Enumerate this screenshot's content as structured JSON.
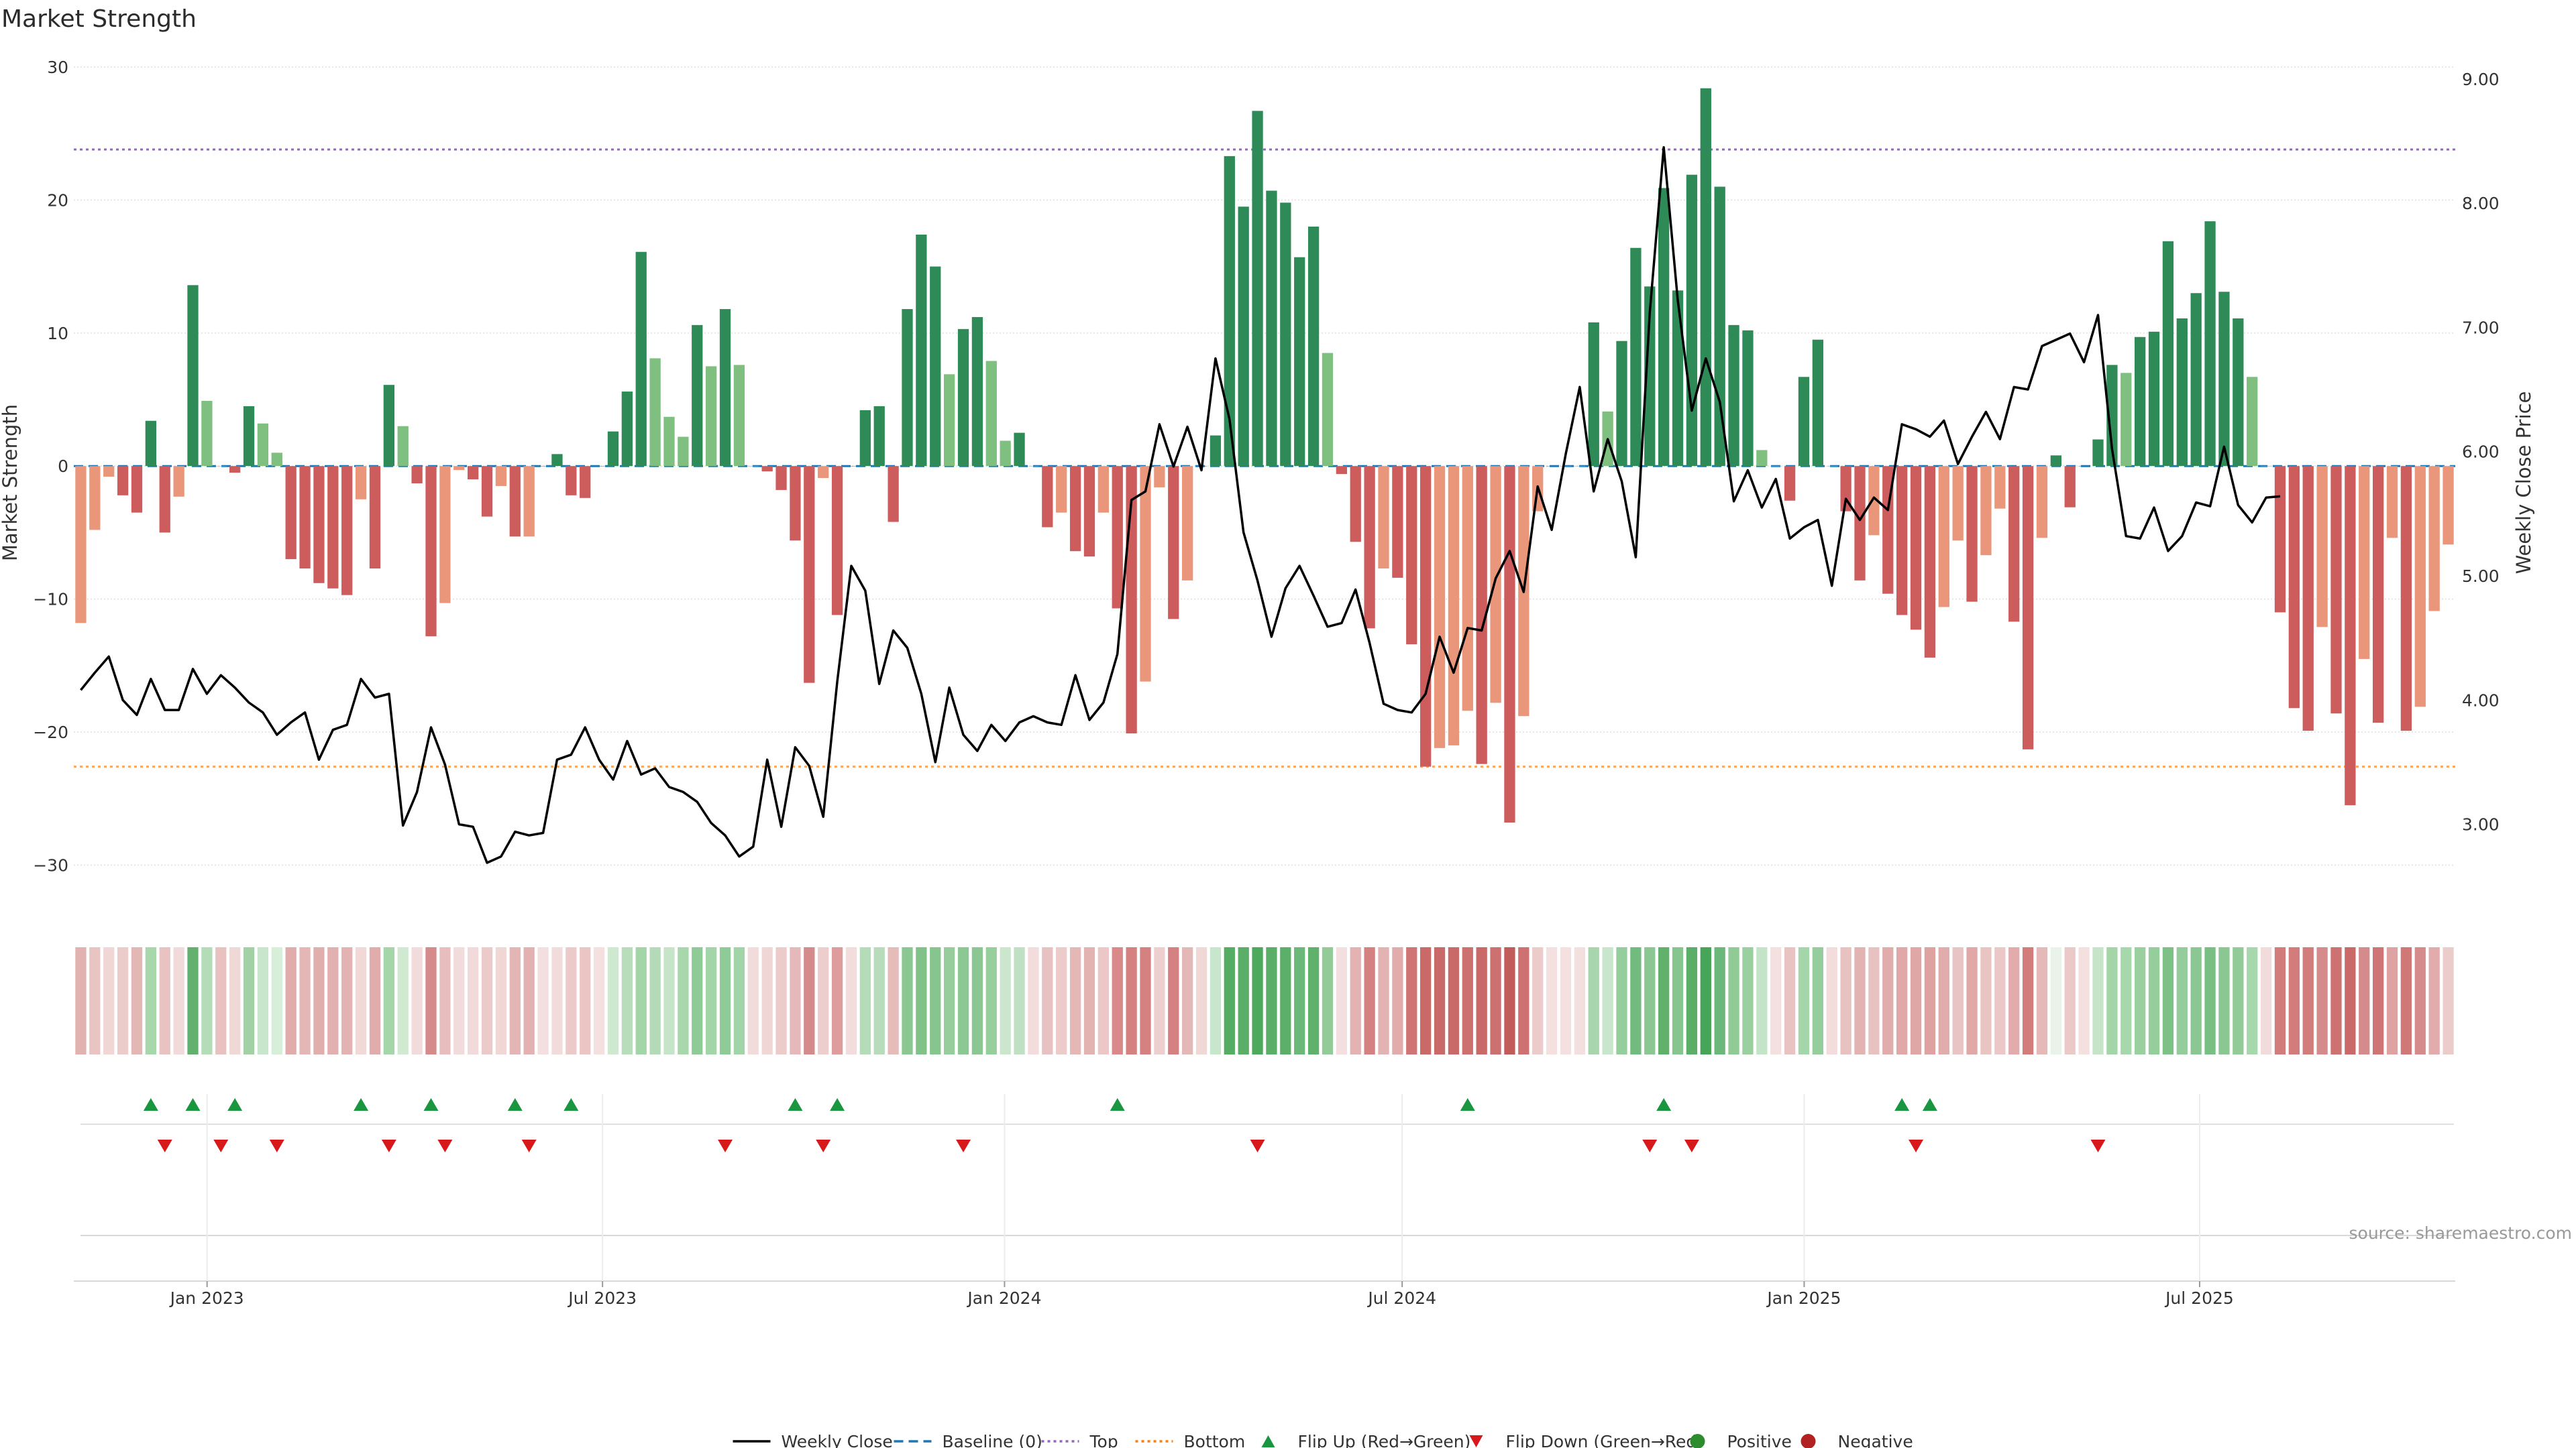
{
  "chart_data": {
    "type": "bar",
    "title": "Market Strength",
    "ylabel_left": "Market Strength",
    "ylabel_right": "Weekly Close Price",
    "ylim_left": [
      -33,
      30.5
    ],
    "ylim_right": [
      2.35,
      9.15
    ],
    "yticks_left": [
      30,
      20,
      10,
      0,
      -10,
      -20,
      -30
    ],
    "ytick_labels_left": [
      "30",
      "20",
      "10",
      "0",
      "−10",
      "−20",
      "−30"
    ],
    "yticks_right": [
      9,
      8,
      7,
      6,
      5,
      4,
      3
    ],
    "ytick_labels_right": [
      "9.00",
      "8.00",
      "7.00",
      "6.00",
      "5.00",
      "4.00",
      "3.00"
    ],
    "x_start_date": "2022-11-01",
    "x_end_date": "2025-10-26",
    "xtick_dates": [
      "2023-01-01",
      "2023-07-01",
      "2024-01-01",
      "2024-07-01",
      "2025-01-01",
      "2025-07-01"
    ],
    "xtick_labels": [
      "Jan 2023",
      "Jul 2023",
      "Jan 2024",
      "Jul 2024",
      "Jan 2025",
      "Jul 2025"
    ],
    "top_line": 23.8,
    "bottom_line": -22.6,
    "baseline": 0,
    "strength": [
      -11.8,
      -4.8,
      -0.8,
      -2.2,
      -3.5,
      3.4,
      -5,
      -2.3,
      13.6,
      4.9,
      0,
      -0.5,
      4.5,
      3.2,
      1,
      -7,
      -7.7,
      -8.8,
      -9.2,
      -9.7,
      -2.5,
      -7.7,
      6.1,
      3,
      -1.3,
      -12.8,
      -10.3,
      -0.3,
      -1,
      -3.8,
      -1.5,
      -5.3,
      -5.3,
      0,
      0.9,
      -2.2,
      -2.4,
      0,
      2.6,
      5.6,
      16.1,
      8.1,
      3.7,
      2.2,
      10.6,
      7.5,
      11.8,
      7.6,
      0,
      -0.4,
      -1.8,
      -5.6,
      -16.3,
      -0.9,
      -11.2,
      0,
      4.2,
      4.5,
      -4.2,
      11.8,
      17.4,
      15,
      6.9,
      10.3,
      11.2,
      7.9,
      1.9,
      2.5,
      0,
      -4.6,
      -3.5,
      -6.4,
      -6.8,
      -3.5,
      -10.7,
      -20.1,
      -16.2,
      -1.6,
      -11.5,
      -8.6,
      0,
      2.3,
      23.3,
      19.5,
      26.7,
      20.7,
      19.8,
      15.7,
      18,
      8.5,
      -0.6,
      -5.7,
      -12.2,
      -7.7,
      -8.4,
      -13.4,
      -22.6,
      -21.2,
      -21,
      -18.4,
      -22.4,
      -17.8,
      -26.8,
      -18.8,
      -3.4,
      0,
      0,
      0,
      10.8,
      4.1,
      9.4,
      16.4,
      13.5,
      20.9,
      13.2,
      21.9,
      28.4,
      21,
      10.6,
      10.2,
      1.2,
      0,
      -2.6,
      6.7,
      9.5,
      0,
      -3.4,
      -8.6,
      -5.2,
      -9.6,
      -11.2,
      -12.3,
      -14.4,
      -10.6,
      -5.6,
      -10.2,
      -6.7,
      -3.2,
      -11.7,
      -21.3,
      -5.4,
      0.8,
      -3.1,
      0,
      2,
      7.6,
      7,
      9.7,
      10.1,
      16.9,
      11.1,
      13,
      18.4,
      13.1,
      11.1,
      6.7,
      0,
      -11,
      -18.2,
      -19.9,
      -12.1,
      -18.6,
      -25.5,
      -14.5,
      -19.3,
      -5.4,
      -19.9,
      -18.1,
      -10.9,
      -5.9
    ],
    "colors": {
      "strong_positive": "#2e8b57",
      "weak_positive": "#7fbf7f",
      "strong_negative": "#cd5c5c",
      "weak_negative": "#e9967a",
      "weekly_close": "#000000",
      "baseline": "#1f77b4",
      "top": "#9467bd",
      "bottom": "#ff7f0e",
      "flip_up": "#1a9641",
      "flip_down": "#d7191c"
    },
    "weekly_close": [
      4.08,
      4.22,
      4.35,
      4.0,
      3.88,
      4.17,
      3.92,
      3.92,
      4.25,
      4.05,
      4.2,
      4.1,
      3.98,
      3.9,
      3.72,
      3.82,
      3.9,
      3.52,
      3.76,
      3.8,
      4.17,
      4.02,
      4.05,
      2.99,
      3.26,
      3.78,
      3.48,
      3.0,
      2.98,
      2.69,
      2.74,
      2.94,
      2.91,
      2.93,
      3.52,
      3.56,
      3.78,
      3.52,
      3.36,
      3.67,
      3.4,
      3.45,
      3.3,
      3.26,
      3.18,
      3.01,
      2.91,
      2.74,
      2.82,
      3.52,
      2.98,
      3.62,
      3.47,
      3.06,
      4.15,
      5.08,
      4.88,
      4.13,
      4.56,
      4.42,
      4.05,
      3.5,
      4.1,
      3.72,
      3.59,
      3.8,
      3.67,
      3.82,
      3.87,
      3.82,
      3.8,
      4.2,
      3.84,
      3.98,
      4.37,
      5.61,
      5.68,
      6.22,
      5.88,
      6.2,
      5.85,
      6.75,
      6.26,
      5.35,
      4.96,
      4.51,
      4.9,
      5.08,
      4.84,
      4.59,
      4.62,
      4.89,
      4.46,
      3.97,
      3.92,
      3.9,
      4.05,
      4.51,
      4.22,
      4.58,
      4.56,
      4.98,
      5.2,
      4.87,
      5.72,
      5.37,
      5.98,
      6.52,
      5.68,
      6.1,
      5.76,
      5.15,
      7.12,
      8.45,
      7.22,
      6.33,
      6.75,
      6.4,
      5.6,
      5.85,
      5.55,
      5.78,
      5.3,
      5.39,
      5.45,
      4.92,
      5.62,
      5.45,
      5.63,
      5.53,
      6.22,
      6.18,
      6.12,
      6.25,
      5.9,
      6.12,
      6.32,
      6.1,
      6.52,
      6.5,
      6.85,
      6.9,
      6.95,
      6.72,
      7.1,
      6.02,
      5.32,
      5.3,
      5.55,
      5.2,
      5.32,
      5.59,
      5.56,
      6.04,
      5.57,
      5.43,
      5.63,
      5.64
    ],
    "band_colors": [
      "#e2b2b0",
      "#e8c4c2",
      "#f0d6d4",
      "#ebcccb",
      "#e3b7b6",
      "#a6d8ac",
      "#e8c3c1",
      "#f1dad9",
      "#64b16f",
      "#b4dcb7",
      "#e9c1c1",
      "#f0d8d6",
      "#a1d1a5",
      "#c8e6cb",
      "#d7eed9",
      "#e1adac",
      "#e4b7b6",
      "#e1aeae",
      "#e2b0b0",
      "#e3b3b3",
      "#f1d9d8",
      "#e1adac",
      "#a4d6aa",
      "#d0ead2",
      "#f1dbdb",
      "#d58b8b",
      "#e7bebd",
      "#f2dcdb",
      "#f1dad9",
      "#ebcac9",
      "#f0d6d5",
      "#e3b5b5",
      "#e2b1b1",
      "#f3dfdf",
      "#f2dcdb",
      "#ebcac9",
      "#eac5c4",
      "#f3e0df",
      "#cfe8d0",
      "#b7ddbb",
      "#a3d5a8",
      "#b5dab8",
      "#c5e4c8",
      "#a8d7ae",
      "#8fcb96",
      "#a2d5a8",
      "#8fcb96",
      "#a1d4a6",
      "#f2dcdb",
      "#f0d7d6",
      "#eccbcb",
      "#e5b9b9",
      "#d58b8b",
      "#eccece",
      "#de9d9c",
      "#f2dddc",
      "#b5dcb8",
      "#b8dcbb",
      "#e6bcbb",
      "#8ac792",
      "#80c288",
      "#86c58d",
      "#97cd9d",
      "#8cc893",
      "#8ac792",
      "#97cf9c",
      "#cbe6cd",
      "#bfe0c2",
      "#f2dcdc",
      "#e8c2c2",
      "#eccbca",
      "#e5b8b8",
      "#e3b3b2",
      "#ebc8c7",
      "#d9898a",
      "#d58181",
      "#d58181",
      "#eccfce",
      "#d58181",
      "#e5b8b8",
      "#f0d8d7",
      "#c8e6cb",
      "#55ad63",
      "#5aae67",
      "#4da95c",
      "#5aae68",
      "#5caf69",
      "#6cb77a",
      "#60b16c",
      "#92cb97",
      "#f3dfdf",
      "#e3b3b3",
      "#d58181",
      "#e3b3b3",
      "#e1acab",
      "#d07575",
      "#c96a69",
      "#c96a69",
      "#c96a69",
      "#cd7170",
      "#c96a69",
      "#cd7170",
      "#c25c5b",
      "#cd7171",
      "#eccbcb",
      "#f3e0df",
      "#f3e0df",
      "#f3dfde",
      "#a8d5ad",
      "#c8e6cb",
      "#96cd9c",
      "#72bb7f",
      "#8ac792",
      "#61b16c",
      "#86c58d",
      "#5bae67",
      "#46a556",
      "#6cb77a",
      "#90cb96",
      "#9acf9f",
      "#c4e4c7",
      "#f3e0df",
      "#e8c3c2",
      "#a4d6a9",
      "#96cd9c",
      "#f2dddc",
      "#e8c2c1",
      "#e3b3b3",
      "#e8c2c1",
      "#e1adac",
      "#e0a8a8",
      "#e0a7a7",
      "#dea2a1",
      "#e1adac",
      "#e8c4c4",
      "#e0a9a8",
      "#e8c4c3",
      "#ebc8c7",
      "#e1acab",
      "#d27c7b",
      "#e5b9b8",
      "#e9f3e9",
      "#ebc9c8",
      "#f3e0df",
      "#c5e4c8",
      "#a3d5a8",
      "#a6d8ac",
      "#9acf9f",
      "#96cd9c",
      "#7dc186",
      "#95cc9b",
      "#8ac792",
      "#79be83",
      "#8ac792",
      "#92cb98",
      "#a7d8ad",
      "#f1dbdb",
      "#d27c7b",
      "#d27c7b",
      "#d27c7b",
      "#d58b8b",
      "#cd7171",
      "#c96a69",
      "#d58b8b",
      "#d07575",
      "#dea2a2",
      "#d07777",
      "#d58b8b",
      "#e1acab",
      "#eccccb"
    ],
    "flip_up_indices": [
      5,
      8,
      11,
      20,
      25,
      31,
      35,
      51,
      54,
      74,
      99,
      113,
      130,
      132
    ],
    "flip_down_indices": [
      6,
      10,
      14,
      22,
      26,
      32,
      46,
      53,
      63,
      84,
      112,
      115,
      131,
      144
    ]
  },
  "legend": [
    {
      "label": "Weekly Close",
      "symbol": "line-solid",
      "color": "#000000"
    },
    {
      "label": "Baseline (0)",
      "symbol": "line-dashed",
      "color": "#1f77b4"
    },
    {
      "label": "Top",
      "symbol": "line-dotted",
      "color": "#9467bd"
    },
    {
      "label": "Bottom",
      "symbol": "line-dotted",
      "color": "#ff7f0e"
    },
    {
      "label": "Flip Up (Red→Green)",
      "symbol": "triangle-up-icon",
      "color": "#1a9641"
    },
    {
      "label": "Flip Down (Green→Red)",
      "symbol": "triangle-down-icon",
      "color": "#d7191c"
    },
    {
      "label": "Positive",
      "symbol": "circle-icon",
      "color": "#2e8b2e"
    },
    {
      "label": "Negative",
      "symbol": "circle-icon",
      "color": "#b22222"
    }
  ],
  "source_text": "source: sharemaestro.com"
}
